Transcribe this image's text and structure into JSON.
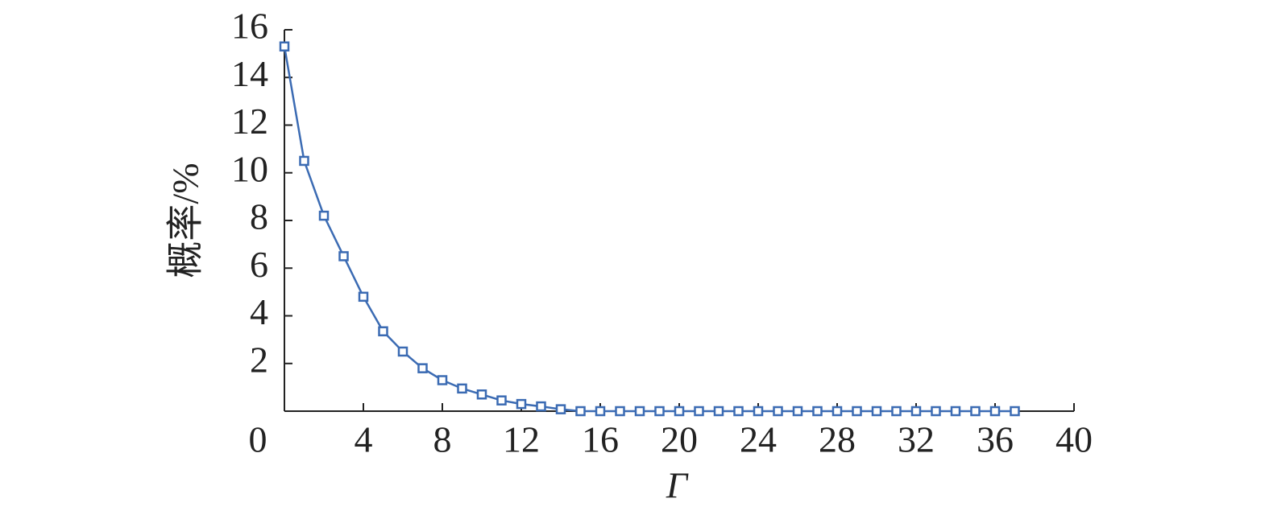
{
  "chart_data": {
    "type": "line",
    "x_label": "Γ",
    "y_label": "概率/%",
    "x": [
      0,
      1,
      2,
      3,
      4,
      5,
      6,
      7,
      8,
      9,
      10,
      11,
      12,
      13,
      14,
      15,
      16,
      17,
      18,
      19,
      20,
      21,
      22,
      23,
      24,
      25,
      26,
      27,
      28,
      29,
      30,
      31,
      32,
      33,
      34,
      35,
      36,
      37
    ],
    "series": [
      {
        "color": "#3b6bb3",
        "values": [
          15.3,
          10.5,
          8.2,
          6.5,
          4.8,
          3.35,
          2.5,
          1.8,
          1.3,
          0.95,
          0.7,
          0.45,
          0.3,
          0.2,
          0.08,
          0,
          0,
          0,
          0,
          0,
          0,
          0,
          0,
          0,
          0,
          0,
          0,
          0,
          0,
          0,
          0,
          0,
          0,
          0,
          0,
          0,
          0,
          0
        ]
      }
    ],
    "xlim": [
      0,
      40
    ],
    "xticks": [
      0,
      4,
      8,
      12,
      16,
      20,
      24,
      28,
      32,
      36,
      40
    ],
    "ylim": [
      0,
      16
    ],
    "yticks": [
      2,
      4,
      6,
      8,
      10,
      12,
      14,
      16
    ],
    "marker": "square"
  }
}
